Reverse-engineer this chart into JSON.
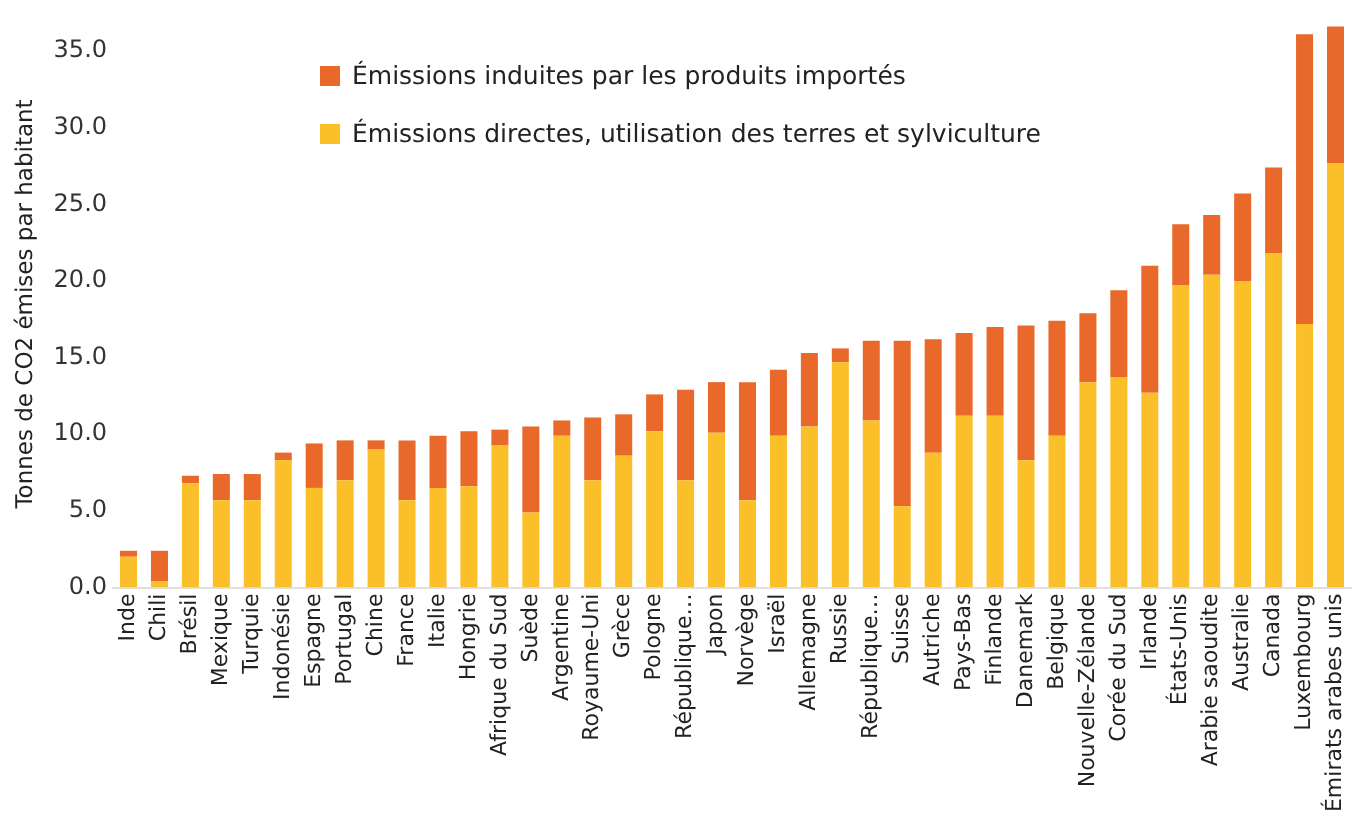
{
  "chart_data": {
    "type": "bar",
    "stacked": true,
    "ylabel": "Tonnes de CO2 émises par habitant",
    "categories": [
      "Inde",
      "Chili",
      "Brésil",
      "Mexique",
      "Turquie",
      "Indonésie",
      "Espagne",
      "Portugal",
      "Chine",
      "France",
      "Italie",
      "Hongrie",
      "Afrique du Sud",
      "Suède",
      "Argentine",
      "Royaume-Uni",
      "Grèce",
      "Pologne",
      "République…",
      "Japon",
      "Norvège",
      "Israël",
      "Allemagne",
      "Russie",
      "République…",
      "Suisse",
      "Autriche",
      "Pays-Bas",
      "Finlande",
      "Danemark",
      "Belgique",
      "Nouvelle-Zélande",
      "Corée du Sud",
      "Irlande",
      "États-Unis",
      "Arabie saoudite",
      "Australie",
      "Canada",
      "Luxembourg",
      "Émirats arabes unis"
    ],
    "series": [
      {
        "name": "Émissions directes, utilisation des terres et sylviculture",
        "color": "#fbbf2a",
        "values": [
          2.0,
          0.4,
          6.8,
          5.7,
          5.7,
          8.3,
          6.5,
          7.0,
          9.0,
          5.7,
          6.5,
          6.6,
          9.3,
          4.9,
          9.9,
          7.0,
          8.6,
          10.2,
          7.0,
          10.1,
          5.7,
          9.9,
          10.5,
          14.7,
          10.9,
          5.3,
          8.8,
          11.2,
          11.2,
          8.3,
          9.9,
          13.4,
          13.7,
          12.7,
          19.7,
          20.4,
          20.0,
          21.8,
          17.2,
          27.7
        ]
      },
      {
        "name": "Émissions induites par les produits importés",
        "color": "#e8692a",
        "values": [
          0.4,
          2.0,
          0.5,
          1.7,
          1.7,
          0.5,
          2.9,
          2.6,
          0.6,
          3.9,
          3.4,
          3.6,
          1.0,
          5.6,
          1.0,
          4.1,
          2.7,
          2.4,
          5.9,
          3.3,
          7.7,
          4.3,
          4.8,
          0.9,
          5.2,
          10.8,
          7.4,
          5.4,
          5.8,
          8.8,
          7.5,
          4.5,
          5.7,
          8.3,
          4.0,
          3.9,
          5.7,
          5.6,
          18.9,
          8.9
        ]
      }
    ],
    "ylim": [
      0,
      37
    ],
    "yticks": [
      {
        "value": 0,
        "label": "0.0"
      },
      {
        "value": 5,
        "label": "5.0"
      },
      {
        "value": 10,
        "label": "10.0"
      },
      {
        "value": 15,
        "label": "15.0"
      },
      {
        "value": 20,
        "label": "20.0"
      },
      {
        "value": 25,
        "label": "25.0"
      },
      {
        "value": 30,
        "label": "30.0"
      },
      {
        "value": 35,
        "label": "35.0"
      }
    ],
    "grid": false,
    "legend": "top left"
  }
}
